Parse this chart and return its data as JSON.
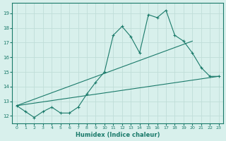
{
  "xlabel": "Humidex (Indice chaleur)",
  "bg_color": "#d8f0ec",
  "grid_color": "#c0ddd8",
  "line_color": "#1a7a6a",
  "xlim": [
    -0.5,
    23.5
  ],
  "ylim": [
    11.5,
    19.7
  ],
  "xticks": [
    0,
    1,
    2,
    3,
    4,
    5,
    6,
    7,
    8,
    9,
    10,
    11,
    12,
    13,
    14,
    15,
    16,
    17,
    18,
    19,
    20,
    21,
    22,
    23
  ],
  "yticks": [
    12,
    13,
    14,
    15,
    16,
    17,
    18,
    19
  ],
  "main_x": [
    0,
    1,
    2,
    3,
    4,
    5,
    6,
    7,
    8,
    9,
    10,
    11,
    12,
    13,
    14,
    15,
    16,
    17,
    18,
    19,
    20,
    21,
    22,
    23
  ],
  "main_y": [
    12.7,
    12.3,
    11.9,
    12.3,
    12.6,
    12.2,
    12.2,
    12.6,
    13.5,
    14.3,
    15.0,
    17.5,
    18.1,
    17.4,
    16.3,
    18.9,
    18.7,
    19.2,
    17.5,
    17.1,
    16.3,
    15.3,
    14.7,
    14.7
  ],
  "trend1_x": [
    0,
    23
  ],
  "trend1_y": [
    12.7,
    14.7
  ],
  "trend2_x": [
    0,
    20
  ],
  "trend2_y": [
    12.7,
    17.1
  ]
}
